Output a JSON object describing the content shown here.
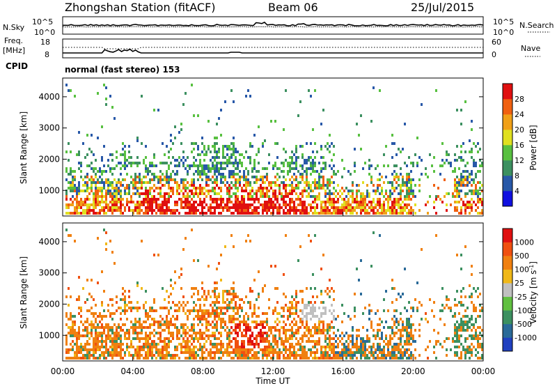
{
  "header": {
    "station": "Zhongshan Station (fitACF)",
    "beam": "Beam 06",
    "date": "25/Jul/2015"
  },
  "panels": {
    "nsky": {
      "label": "N.Sky",
      "left_ticks": [
        "10^5",
        "10^0"
      ],
      "right_ticks": [
        "10^5",
        "10^0"
      ],
      "right_label": "N.Search"
    },
    "freq": {
      "label_top": "Freq.",
      "label_unit": "[MHz]",
      "left_ticks": [
        "18",
        "8"
      ],
      "right_ticks": [
        "60",
        "0"
      ],
      "right_label": "Nave"
    },
    "cpid": {
      "label": "CPID",
      "text": "normal (fast stereo) 153"
    }
  },
  "chart_data": [
    {
      "type": "heatmap",
      "name": "power",
      "ylabel": "Slant Range [km]",
      "yticks": [
        1000,
        2000,
        3000,
        4000
      ],
      "ylim": [
        180,
        4600
      ],
      "xlim_hours": [
        0,
        24
      ],
      "colorbar_label": "Power [dB]",
      "colorbar_ticks": [
        "4",
        "8",
        "12",
        "16",
        "20",
        "24",
        "28"
      ],
      "colorbar_colors": [
        "#1010e0",
        "#2858a8",
        "#3c9060",
        "#58c040",
        "#e0e020",
        "#f0a018",
        "#f06010",
        "#e01010"
      ],
      "colorbar_range": [
        0,
        32
      ]
    },
    {
      "type": "heatmap",
      "name": "velocity",
      "xlabel": "Time UT",
      "ylabel": "Slant Range [km]",
      "yticks": [
        1000,
        2000,
        3000,
        4000
      ],
      "ylim": [
        180,
        4600
      ],
      "xlim_hours": [
        0,
        24
      ],
      "xticks": [
        "00:00",
        "04:00",
        "08:00",
        "12:00",
        "16:00",
        "20:00",
        "00:00"
      ],
      "colorbar_label": "Velocity [m s^-1]",
      "colorbar_ticks": [
        "1000",
        "500",
        "100",
        "25",
        "-25",
        "-100",
        "-500",
        "-1000"
      ],
      "colorbar_colors": [
        "#2040c0",
        "#2a6a98",
        "#3c9060",
        "#60c040",
        "#c0c0c0",
        "#f0b818",
        "#f08010",
        "#f05010",
        "#e01010"
      ]
    }
  ]
}
